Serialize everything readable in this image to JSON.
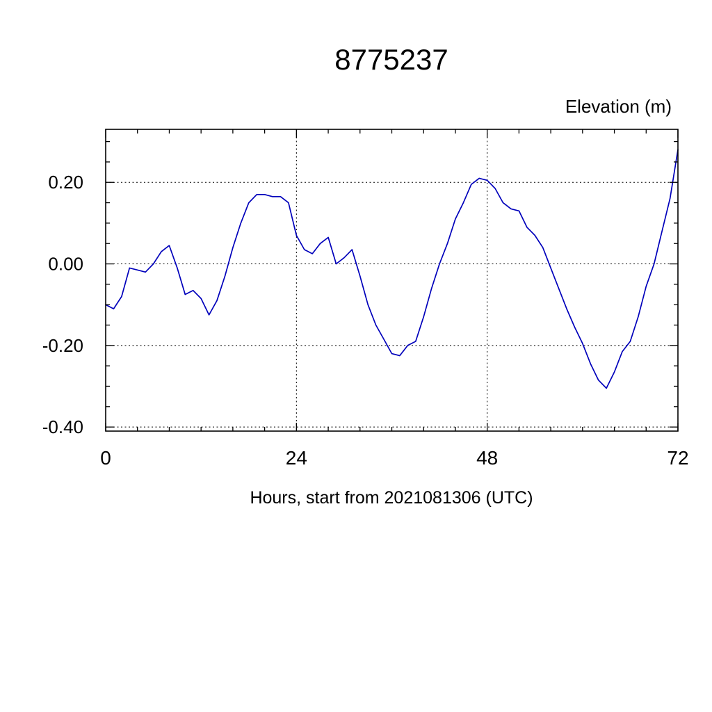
{
  "chart_data": {
    "type": "line",
    "title": "8775237",
    "ylabel": "Elevation (m)",
    "xlabel": "Hours, start from 2021081306 (UTC)",
    "xlim": [
      0,
      72
    ],
    "ylim": [
      -0.41,
      0.33
    ],
    "x_major_ticks": [
      0,
      24,
      48,
      72
    ],
    "x_tick_labels": [
      "0",
      "24",
      "48",
      "72"
    ],
    "x_minor_step": 4,
    "y_major_ticks": [
      0.2,
      0.0,
      -0.2,
      -0.4
    ],
    "y_tick_labels": [
      "0.20",
      "0.00",
      "-0.20",
      "-0.40"
    ],
    "y_minor_step": 0.05,
    "grid_x": [
      24,
      48
    ],
    "grid_y": [
      0.2,
      0.0,
      -0.2,
      -0.4
    ],
    "line_color": "#0000bb",
    "axis_color": "#000000",
    "grid_on": true,
    "legend_position": "none",
    "series": [
      {
        "name": "elevation",
        "x": [
          0,
          1,
          2,
          3,
          4,
          5,
          6,
          7,
          8,
          9,
          10,
          11,
          12,
          13,
          14,
          15,
          16,
          17,
          18,
          19,
          20,
          21,
          22,
          23,
          24,
          25,
          26,
          27,
          28,
          29,
          30,
          31,
          32,
          33,
          34,
          35,
          36,
          37,
          38,
          39,
          40,
          41,
          42,
          43,
          44,
          45,
          46,
          47,
          48,
          49,
          50,
          51,
          52,
          53,
          54,
          55,
          56,
          57,
          58,
          59,
          60,
          61,
          62,
          63,
          64,
          65,
          66,
          67,
          68,
          69,
          70,
          71,
          72
        ],
        "y": [
          -0.1,
          -0.11,
          -0.08,
          -0.01,
          -0.015,
          -0.02,
          0.0,
          0.03,
          0.045,
          -0.01,
          -0.075,
          -0.065,
          -0.085,
          -0.125,
          -0.09,
          -0.03,
          0.04,
          0.1,
          0.15,
          0.17,
          0.17,
          0.165,
          0.165,
          0.15,
          0.07,
          0.035,
          0.025,
          0.05,
          0.065,
          0.0,
          0.015,
          0.035,
          -0.03,
          -0.1,
          -0.15,
          -0.185,
          -0.22,
          -0.225,
          -0.2,
          -0.19,
          -0.13,
          -0.06,
          0.0,
          0.05,
          0.11,
          0.15,
          0.195,
          0.21,
          0.205,
          0.185,
          0.15,
          0.135,
          0.13,
          0.09,
          0.07,
          0.04,
          -0.01,
          -0.06,
          -0.11,
          -0.155,
          -0.195,
          -0.245,
          -0.285,
          -0.305,
          -0.265,
          -0.215,
          -0.19,
          -0.13,
          -0.055,
          0.0,
          0.08,
          0.16,
          0.28
        ]
      }
    ]
  }
}
